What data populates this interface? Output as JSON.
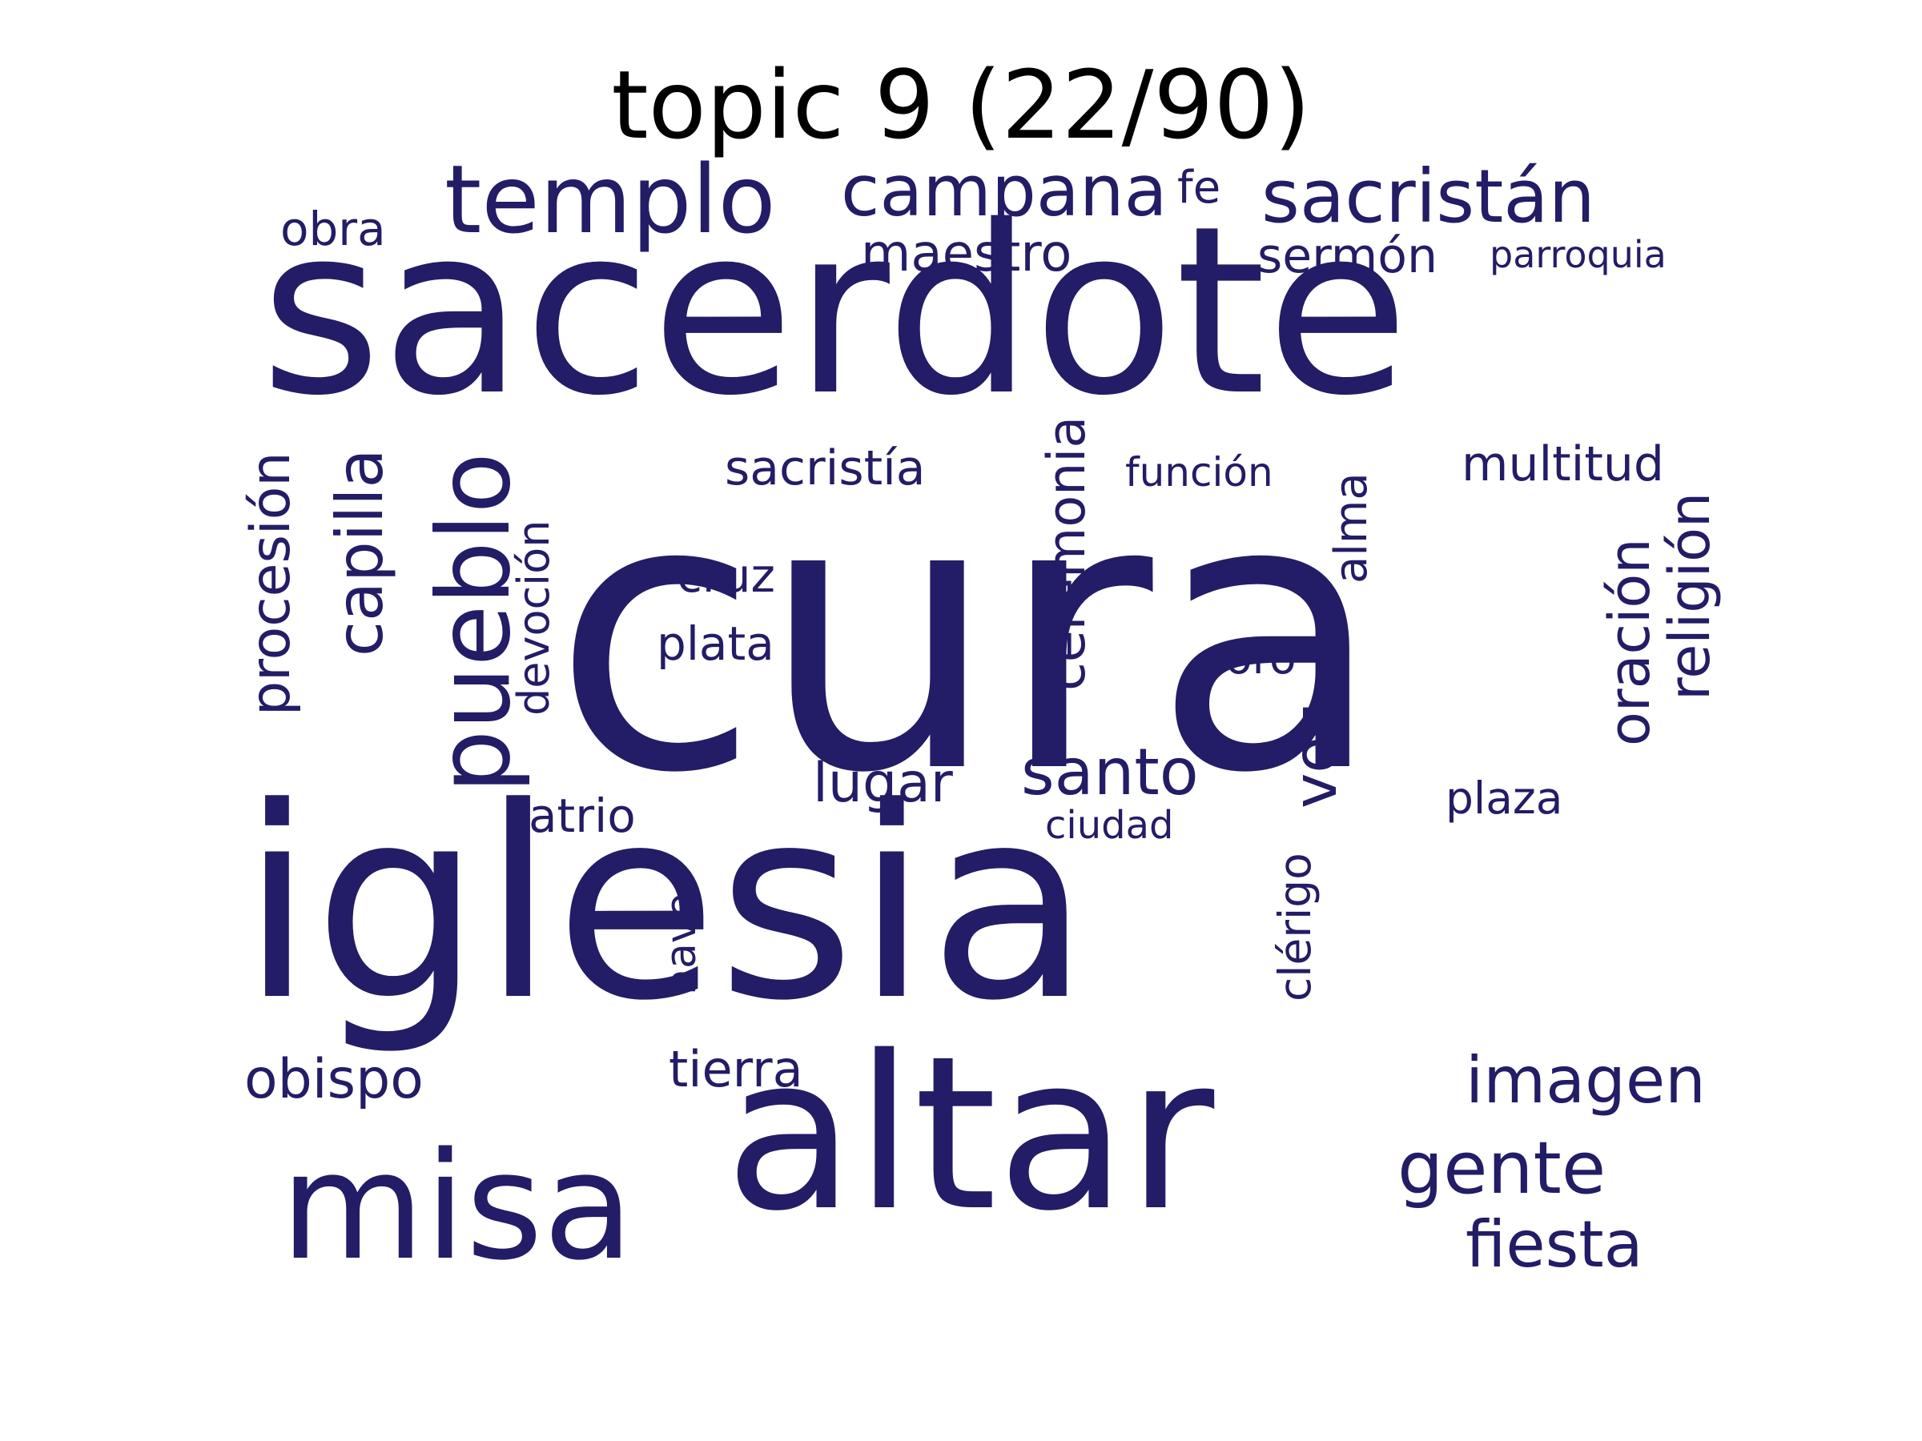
{
  "title": "topic 9 (22/90)",
  "word_color": "#231c66",
  "words": [
    {
      "text": "cura"
    },
    {
      "text": "iglesia"
    },
    {
      "text": "sacerdote"
    },
    {
      "text": "altar"
    },
    {
      "text": "misa"
    },
    {
      "text": "templo"
    },
    {
      "text": "pueblo"
    },
    {
      "text": "sacristán"
    },
    {
      "text": "campana"
    },
    {
      "text": "capilla"
    },
    {
      "text": "procesión"
    },
    {
      "text": "ceremonia"
    },
    {
      "text": "religión"
    },
    {
      "text": "oración"
    },
    {
      "text": "gente"
    },
    {
      "text": "fiesta"
    },
    {
      "text": "imagen"
    },
    {
      "text": "santo"
    },
    {
      "text": "voz"
    },
    {
      "text": "obispo"
    },
    {
      "text": "lugar"
    },
    {
      "text": "multitud"
    },
    {
      "text": "sacristía"
    },
    {
      "text": "alma"
    },
    {
      "text": "devoción"
    },
    {
      "text": "maestro"
    },
    {
      "text": "sermón"
    },
    {
      "text": "tierra"
    },
    {
      "text": "cruz"
    },
    {
      "text": "plata"
    },
    {
      "text": "atrio"
    },
    {
      "text": "oro"
    },
    {
      "text": "clérigo"
    },
    {
      "text": "plaza"
    },
    {
      "text": "nave"
    },
    {
      "text": "obra"
    },
    {
      "text": "fe"
    },
    {
      "text": "función"
    },
    {
      "text": "ciudad"
    },
    {
      "text": "parroquia"
    }
  ]
}
